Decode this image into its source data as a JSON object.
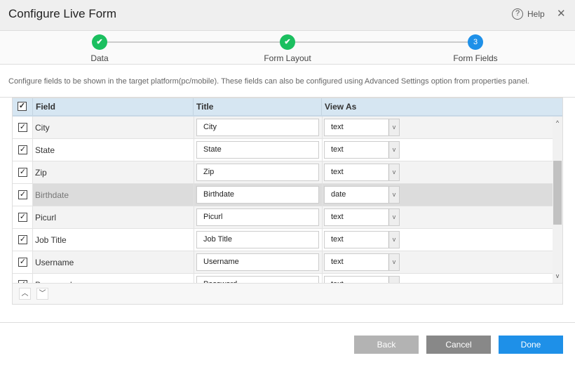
{
  "header": {
    "title": "Configure Live Form",
    "help_label": "Help",
    "help_icon": "question-circle-icon",
    "close_icon": "close-icon",
    "close_glyph": "✕"
  },
  "steps": [
    {
      "label": "Data",
      "state": "done",
      "marker": "✔"
    },
    {
      "label": "Form Layout",
      "state": "done",
      "marker": "✔"
    },
    {
      "label": "Form Fields",
      "state": "current",
      "marker": "3"
    }
  ],
  "description": "Configure fields to be shown in the target platform(pc/mobile). These fields can also be configured using Advanced Settings option from properties panel.",
  "table": {
    "columns": {
      "field": "Field",
      "title": "Title",
      "view_as": "View As"
    },
    "rows": [
      {
        "field": "City",
        "title": "City",
        "view_as": "text",
        "checked": true
      },
      {
        "field": "State",
        "title": "State",
        "view_as": "text",
        "checked": true
      },
      {
        "field": "Zip",
        "title": "Zip",
        "view_as": "text",
        "checked": true
      },
      {
        "field": "Birthdate",
        "title": "Birthdate",
        "view_as": "date",
        "checked": true,
        "selected": true
      },
      {
        "field": "Picurl",
        "title": "Picurl",
        "view_as": "text",
        "checked": true
      },
      {
        "field": "Job Title",
        "title": "Job Title",
        "view_as": "text",
        "checked": true
      },
      {
        "field": "Username",
        "title": "Username",
        "view_as": "text",
        "checked": true
      },
      {
        "field": "Password",
        "title": "Password",
        "view_as": "text",
        "checked": true
      }
    ]
  },
  "buttons": {
    "back": "Back",
    "cancel": "Cancel",
    "done": "Done"
  },
  "colors": {
    "accent": "#1e90e8",
    "success": "#1bbf5f",
    "back": "#b3b3b3",
    "cancel": "#888888"
  }
}
